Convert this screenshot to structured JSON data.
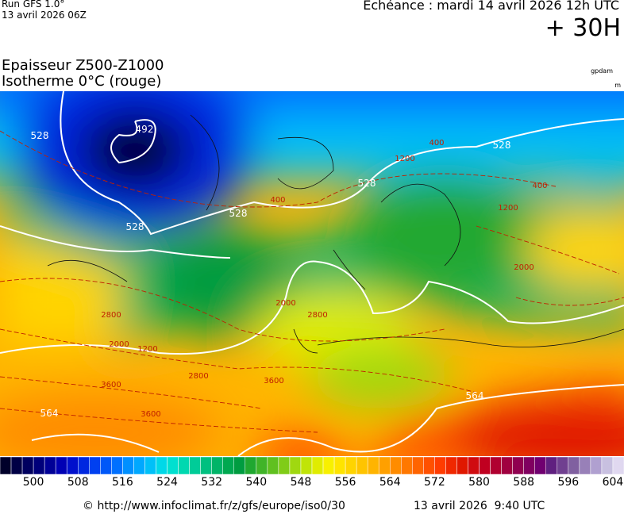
{
  "header": {
    "run": "Run GFS 1.0°",
    "run_date": "13 avril 2026 06Z",
    "valid": "Echéance : mardi 14 avril 2026 12h UTC",
    "lead": "+ 30H",
    "field": "Epaisseur Z500-Z1000",
    "isotherm": "Isotherme 0°C (rouge)",
    "unit_thickness": "gpdam",
    "unit_iso": "m"
  },
  "map": {
    "contour_labels": [
      "492",
      "528",
      "528",
      "528",
      "528",
      "528",
      "564",
      "564",
      "400",
      "400",
      "400",
      "1200",
      "1200",
      "1200",
      "2000",
      "2000",
      "2000",
      "2800",
      "2800",
      "2800",
      "3600",
      "3600",
      "3600"
    ]
  },
  "colorbar": {
    "range": [
      494,
      606
    ],
    "ticks": [
      500,
      508,
      516,
      524,
      532,
      540,
      548,
      556,
      564,
      572,
      580,
      588,
      596,
      604
    ],
    "colors": [
      "#00002a",
      "#000045",
      "#00005f",
      "#00007a",
      "#000096",
      "#0000b4",
      "#0010cc",
      "#0028e0",
      "#0040f0",
      "#0058f8",
      "#0070ff",
      "#0090ff",
      "#00a8ff",
      "#00c0f8",
      "#00d8e8",
      "#00e0d0",
      "#00d8b0",
      "#00cc98",
      "#00c080",
      "#00b468",
      "#00a850",
      "#009c40",
      "#20a830",
      "#40b428",
      "#60c020",
      "#80cc18",
      "#a0d810",
      "#c0e408",
      "#e0ec00",
      "#f8f000",
      "#ffe400",
      "#ffd400",
      "#ffc400",
      "#ffb400",
      "#ffa000",
      "#ff8c00",
      "#ff7800",
      "#ff6400",
      "#ff5000",
      "#ff3c00",
      "#f02800",
      "#e01800",
      "#d00c10",
      "#c00020",
      "#b00030",
      "#a00040",
      "#900050",
      "#800060",
      "#700070",
      "#602080",
      "#704090",
      "#8060a0",
      "#9880b8",
      "#b0a0d0",
      "#c8c0e0",
      "#e0d8f0"
    ]
  },
  "footer": {
    "source": "© http://www.infoclimat.fr/z/gfs/europe/iso0/30",
    "generated": "13 avril 2026  9:40 UTC"
  }
}
